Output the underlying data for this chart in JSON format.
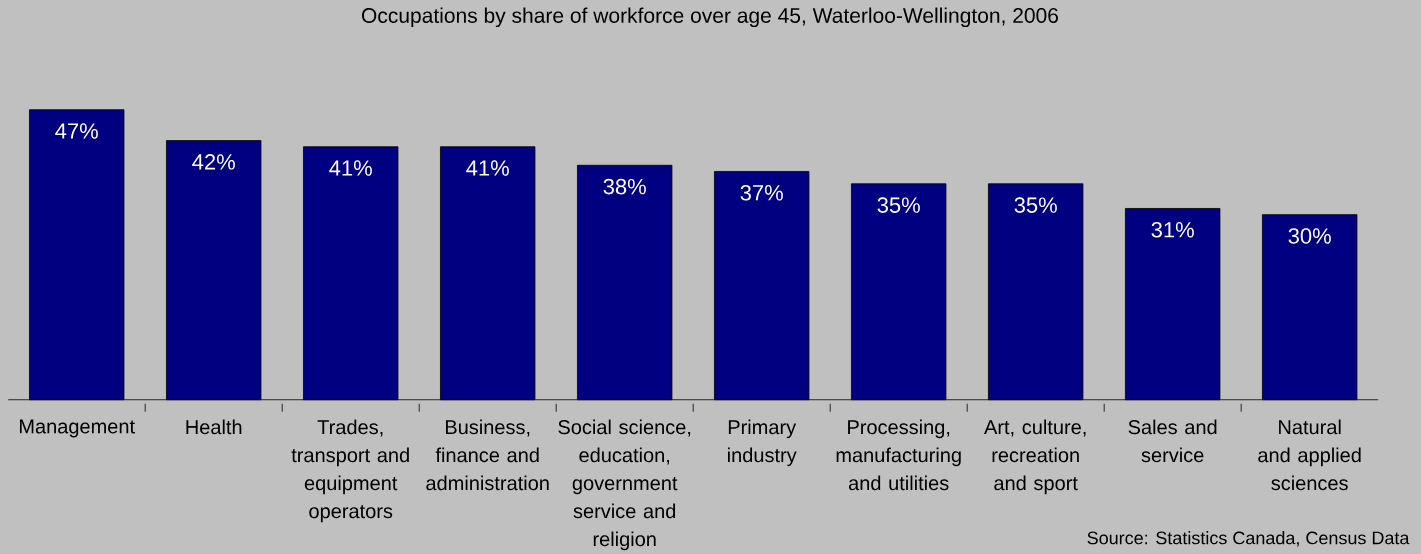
{
  "chart_data": {
    "type": "bar",
    "title": "Occupations by share of workforce over age 45, Waterloo-Wellington, 2006",
    "categories": [
      "Management",
      "Health",
      "Trades, transport and equipment operators",
      "Business, finance and administration",
      "Social science, education, government service and religion",
      "Primary industry",
      "Processing, manufacturing and utilities",
      "Art, culture, recreation and sport",
      "Sales and service",
      "Natural and applied sciences"
    ],
    "values": [
      47,
      42,
      41,
      41,
      38,
      37,
      35,
      35,
      31,
      30
    ],
    "value_labels": [
      "47%",
      "42%",
      "41%",
      "41%",
      "38%",
      "37%",
      "35%",
      "35%",
      "31%",
      "30%"
    ],
    "color": "#000080",
    "annotations": [
      "Source: Statistics Canada, Census Data"
    ]
  }
}
